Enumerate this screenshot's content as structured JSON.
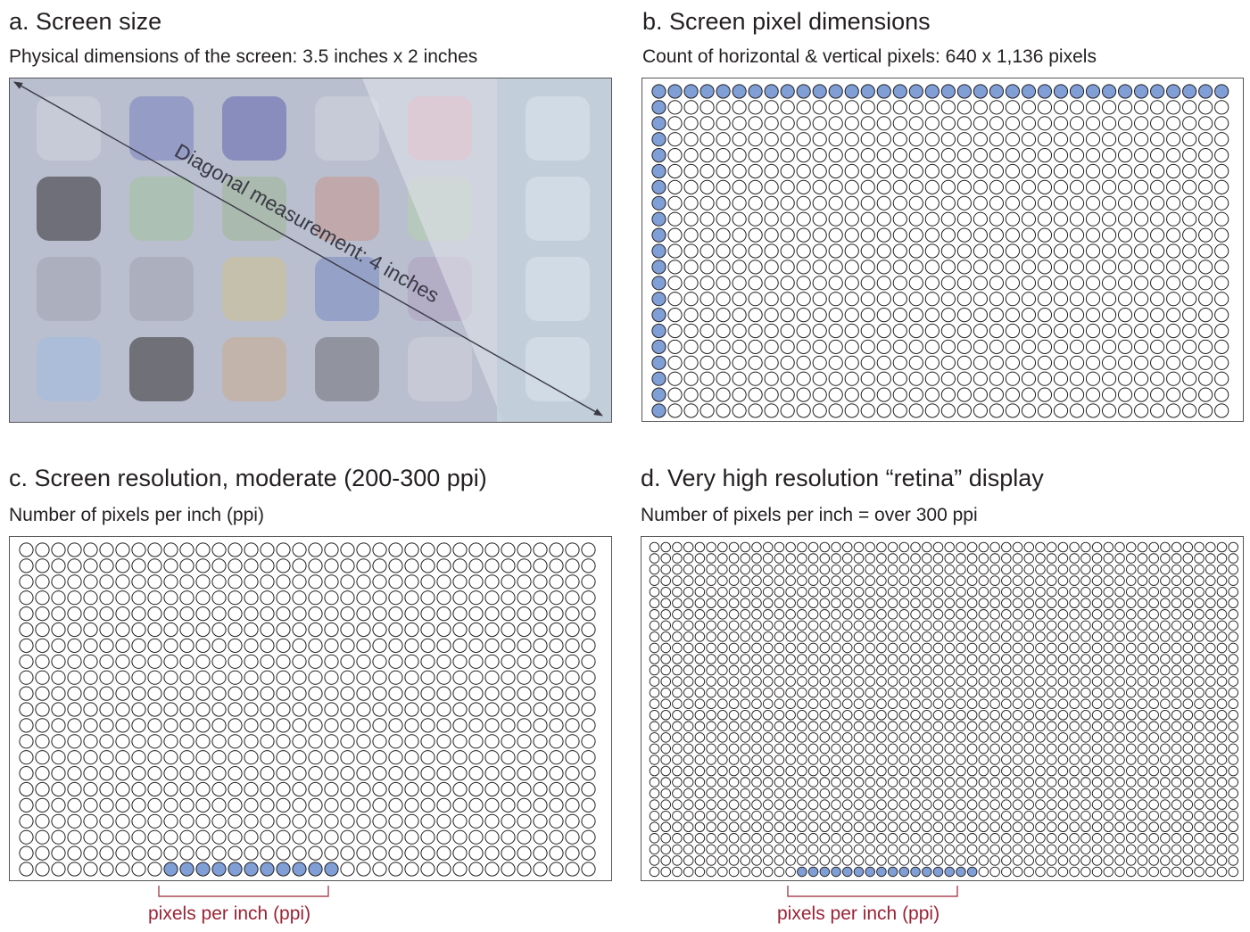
{
  "panels": {
    "a": {
      "title": "a.  Screen size",
      "subtitle": "Physical dimensions of the screen: 3.5 inches x 2 inches",
      "diagonal_label": "Diagonal measurement: 4 inches"
    },
    "b": {
      "title": "b.  Screen pixel dimensions",
      "subtitle": "Count of horizontal & vertical pixels: 640 x 1,136 pixels"
    },
    "c": {
      "title": "c.  Screen resolution, moderate (200-300 ppi)",
      "subtitle": "Number of pixels per inch (ppi)",
      "bracket_label": "pixels per inch (ppi)"
    },
    "d": {
      "title": "d.  Very high resolution “retina” display",
      "subtitle": "Number of pixels per inch = over 300 ppi",
      "bracket_label": "pixels per inch (ppi)"
    }
  },
  "colors": {
    "highlight_pixel": "#7f9fd6",
    "pixel_outline": "#231f20",
    "label_red": "#9b2335",
    "screen_bg": "#b9bfcf",
    "screen_side": "#c3d0dc"
  },
  "app_icons": {
    "colors": [
      [
        "#c9ccd9",
        "#8e97c4",
        "#7f84ba",
        "#c9ccd9",
        "#d7a3b4"
      ],
      [
        "#606069",
        "#a9bfae",
        "#a8b8a8",
        "#c1a3a5",
        "#b6c9b9"
      ],
      [
        "#a9adbb",
        "#a9adbb",
        "#c7c0a6",
        "#8e9bc4",
        "#b3a9c4"
      ],
      [
        "#a8bcd9",
        "#626268",
        "#c4b1a5",
        "#8a8b95",
        "#c9cbd7"
      ]
    ]
  }
}
